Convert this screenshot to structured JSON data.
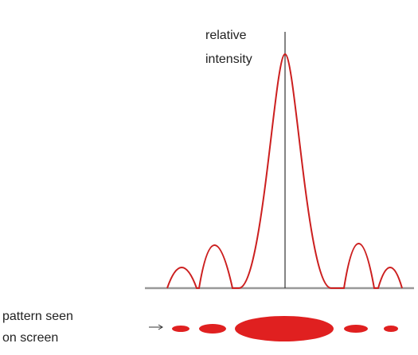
{
  "axis_label": {
    "lines": [
      "relative",
      "intensity"
    ]
  },
  "screen_label": {
    "lines": [
      "pattern seen",
      "on screen"
    ]
  }
}
